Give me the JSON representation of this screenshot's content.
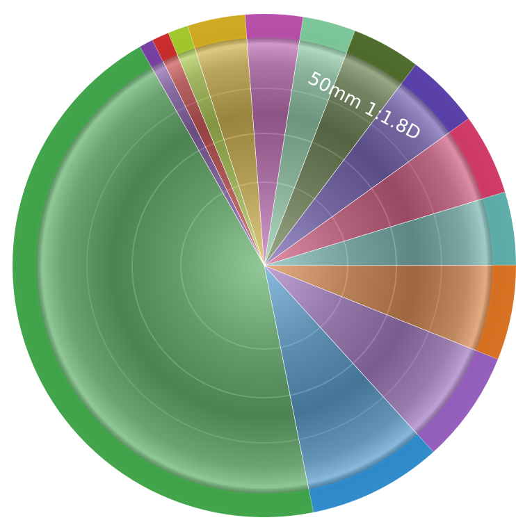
{
  "chart_data": {
    "type": "pie",
    "annotation": "50mm  1:1.8D",
    "start_angle": -4.4,
    "values": [
      3.7,
      3.4,
      4.4,
      4.8,
      5.2,
      4.7,
      6.1,
      7.2,
      8.6,
      44.9,
      0.9,
      1.1,
      1.3,
      3.7
    ],
    "colors": [
      "#c04fb0",
      "#7fcf9f",
      "#4f6e2a",
      "#5a3fb0",
      "#d83a6a",
      "#5fb4b0",
      "#e2731f",
      "#9a5fc4",
      "#2d8fd4",
      "#3faa4a",
      "#7a3fa8",
      "#d42a2a",
      "#a8cf2a",
      "#d8b01f"
    ]
  }
}
